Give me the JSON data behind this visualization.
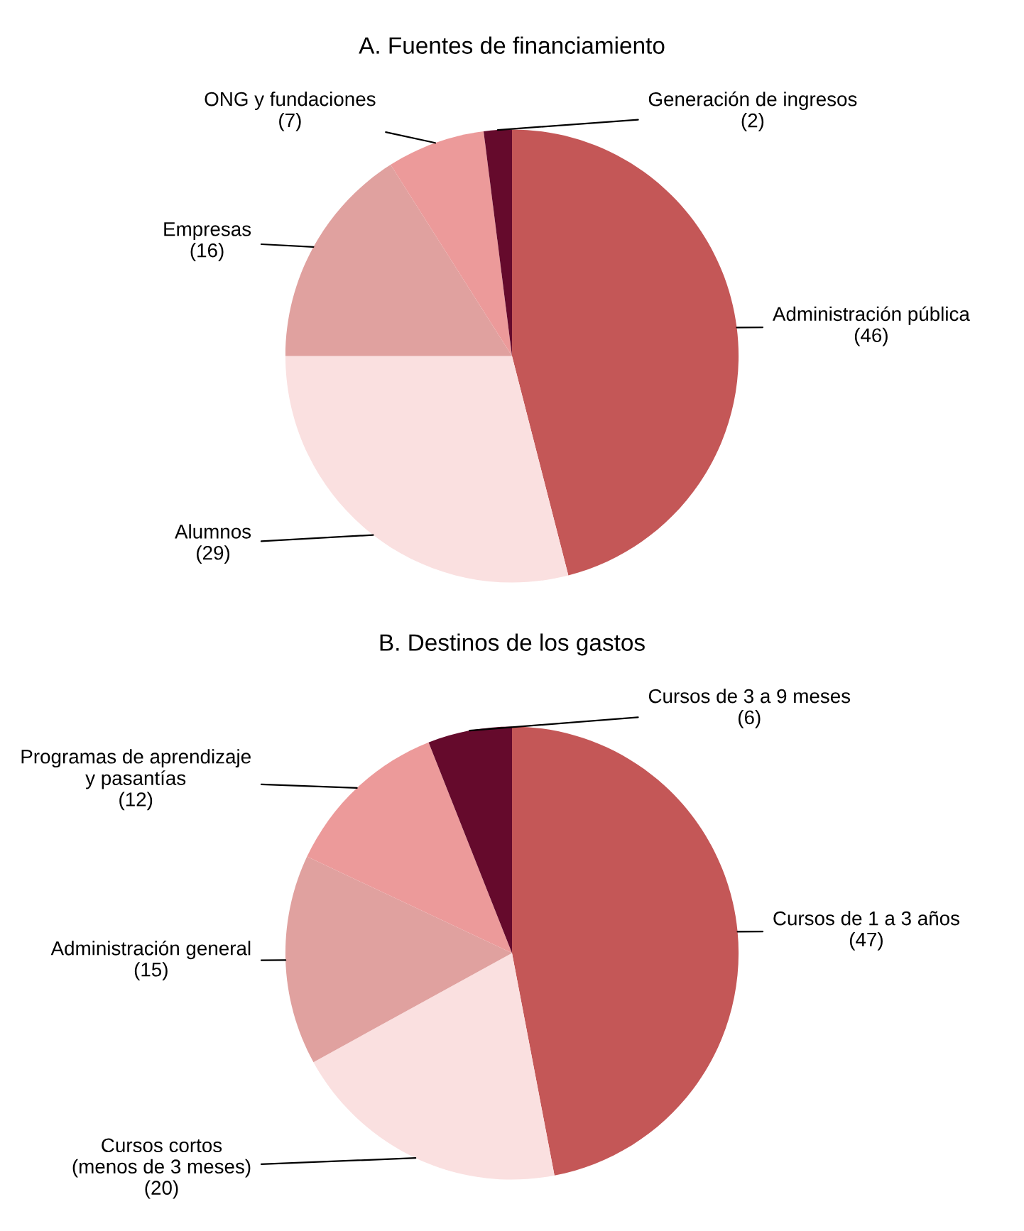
{
  "chart_data": [
    {
      "type": "pie",
      "title": "A. Fuentes de financiamiento",
      "categories": [
        "Administración pública",
        "Alumnos",
        "Empresas",
        "ONG y fundaciones",
        "Generación de ingresos"
      ],
      "values": [
        46,
        29,
        16,
        7,
        2
      ],
      "value_labels": [
        "(46)",
        "(29)",
        "(16)",
        "(7)",
        "(2)"
      ],
      "colors": [
        "#c45757",
        "#fae0e0",
        "#e0a19f",
        "#ec9a9a",
        "#650a2c"
      ],
      "data_labels": true
    },
    {
      "type": "pie",
      "title": "B. Destinos de los gastos",
      "categories": [
        "Cursos de 1 a 3 años",
        "Cursos cortos\n(menos de 3 meses)",
        "Administración general",
        "Programas de aprendizaje\ny pasantías",
        "Cursos de 3 a 9 meses"
      ],
      "values": [
        47,
        20,
        15,
        12,
        6
      ],
      "value_labels": [
        "(47)",
        "(20)",
        "(15)",
        "(12)",
        "(6)"
      ],
      "colors": [
        "#c45757",
        "#fae0e0",
        "#e0a19f",
        "#ec9a9a",
        "#650a2c"
      ],
      "data_labels": true
    }
  ]
}
